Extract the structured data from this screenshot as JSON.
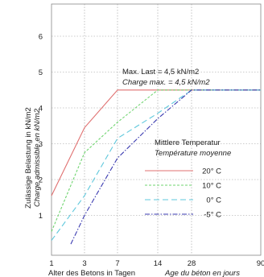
{
  "chart_data": {
    "type": "line",
    "x_tick_labels": [
      "1",
      "3",
      "7",
      "14",
      "28",
      "90"
    ],
    "y_tick_labels": [
      "1",
      "2",
      "3",
      "4",
      "5",
      "6"
    ],
    "xlim": [
      1,
      90
    ],
    "ylim": [
      0,
      7
    ],
    "x_scale": "custom-nonlinear",
    "grid": true,
    "xlabel_de": "Alter des Betons in Tagen",
    "xlabel_fr": "Age du béton en jours",
    "ylabel_de": "Zulässige Belastung in kN/m2",
    "ylabel_fr": "Charge admissible en kN/m2",
    "annotation_de": "Max. Last = 4,5 kN/m2",
    "annotation_fr": "Charge max. = 4,5 kN/m2",
    "legend_title_de": "Mittlere Temperatur",
    "legend_title_fr": "Température moyenne",
    "legend_position": "center-right",
    "series": [
      {
        "name": "20° C",
        "color": "#e07070",
        "dash": "solid",
        "points": [
          [
            1,
            1.55
          ],
          [
            3,
            3.45
          ],
          [
            7,
            4.5
          ],
          [
            90,
            4.5
          ]
        ]
      },
      {
        "name": "10° C",
        "color": "#6fd46f",
        "dash": "short",
        "points": [
          [
            1,
            0.55
          ],
          [
            3,
            2.75
          ],
          [
            7,
            3.6
          ],
          [
            14,
            4.5
          ],
          [
            90,
            4.5
          ]
        ]
      },
      {
        "name": "0° C",
        "color": "#5fc8dc",
        "dash": "long",
        "points": [
          [
            1,
            0.3
          ],
          [
            3,
            1.55
          ],
          [
            7,
            3.15
          ],
          [
            14,
            3.85
          ],
          [
            28,
            4.5
          ],
          [
            90,
            4.5
          ]
        ]
      },
      {
        "name": "-5° C",
        "color": "#3a3ab0",
        "dash": "dashdot",
        "points": [
          [
            1.9,
            0.2
          ],
          [
            3,
            1.0
          ],
          [
            7,
            2.6
          ],
          [
            14,
            3.7
          ],
          [
            28,
            4.5
          ],
          [
            90,
            4.5
          ]
        ]
      }
    ]
  }
}
